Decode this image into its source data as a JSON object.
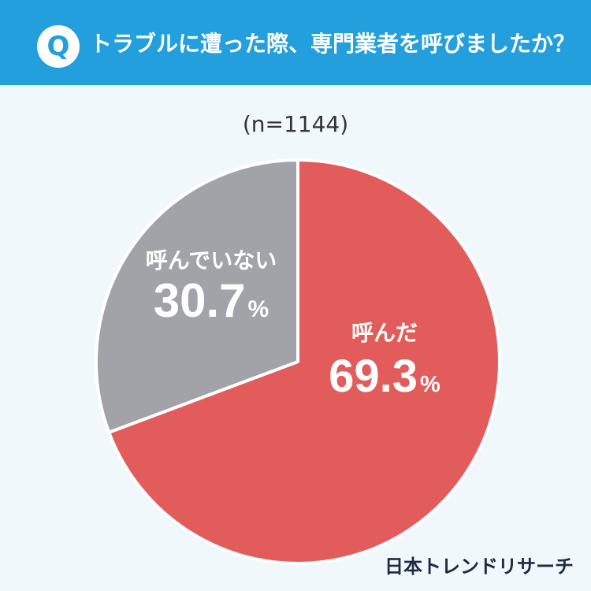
{
  "header": {
    "badge": "Q",
    "question": "トラブルに遭った際、専門業者を呼びましたか？",
    "background": "#229fdc"
  },
  "sample_size": "(n=1144)",
  "brand": "日本トレンドリサーチ",
  "chart_data": {
    "type": "pie",
    "title": "",
    "slices": [
      {
        "label": "呼んだ",
        "value": 69.3,
        "value_text": "69.3",
        "unit": "%",
        "color": "#e35c5c"
      },
      {
        "label": "呼んでいない",
        "value": 30.7,
        "value_text": "30.7",
        "unit": "%",
        "color": "#a2a3a8"
      }
    ],
    "start": "12 o'clock",
    "direction": "clockwise",
    "legend": "none"
  }
}
